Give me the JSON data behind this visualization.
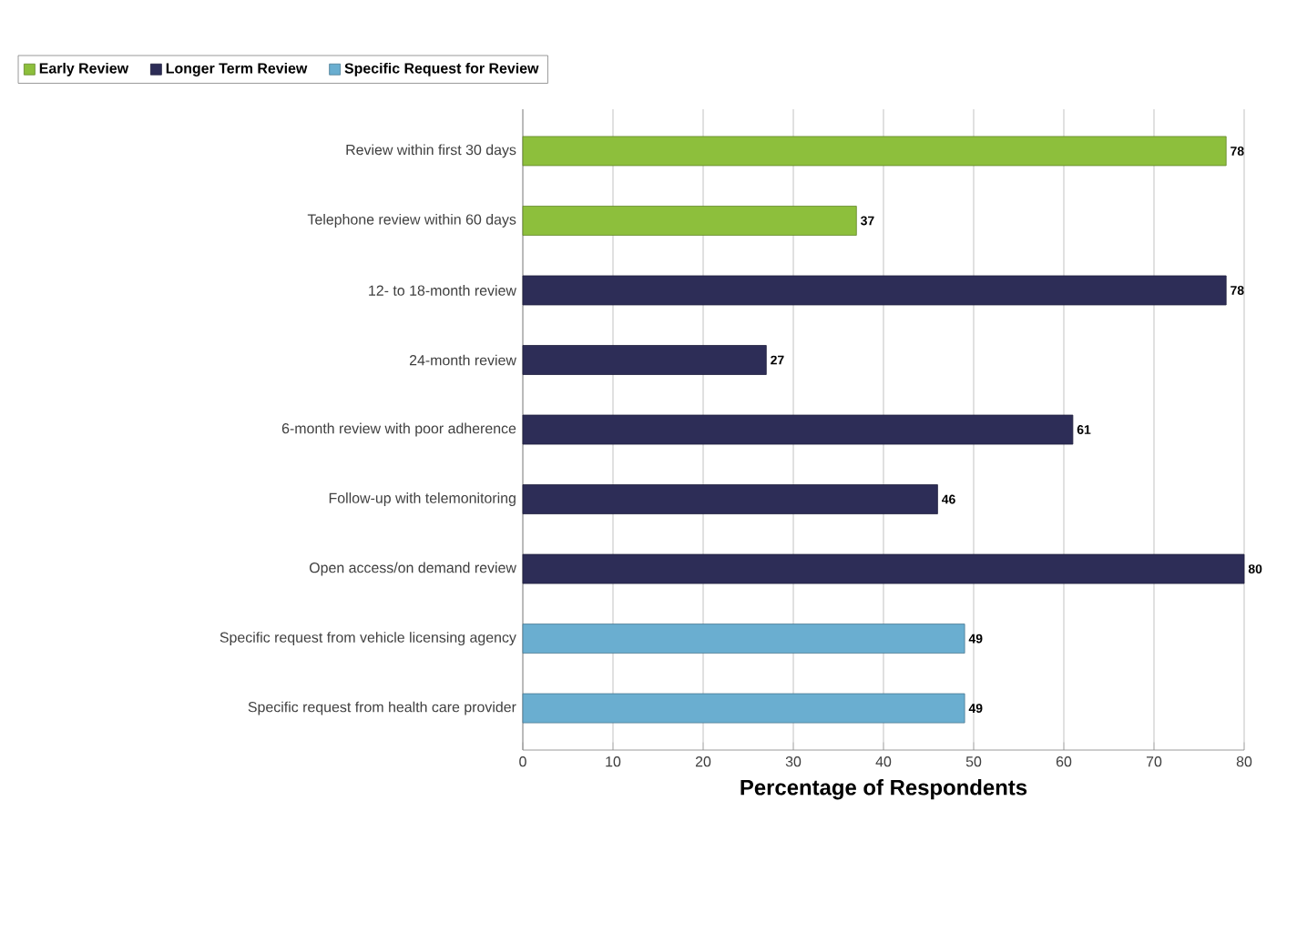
{
  "chart_data": {
    "type": "bar",
    "orientation": "horizontal",
    "xlabel": "Percentage of Respondents",
    "categories": [
      "Review within first 30 days",
      "Telephone review within 60 days",
      "12- to 18-month review",
      "24-month review",
      "6-month review with poor adherence",
      "Follow-up with telemonitoring",
      "Open access/on demand  review",
      "Specific request from vehicle licensing agency",
      "Specific request from health care provider"
    ],
    "series": [
      {
        "name": "Early Review",
        "color": "#8dbf3c",
        "values": [
          78,
          37,
          null,
          null,
          null,
          null,
          null,
          null,
          null
        ]
      },
      {
        "name": "Longer Term Review",
        "color": "#2d2d57",
        "values": [
          null,
          null,
          78,
          27,
          61,
          46,
          80,
          null,
          null
        ]
      },
      {
        "name": "Specific Request for Review",
        "color": "#6aaed0",
        "values": [
          null,
          null,
          null,
          null,
          null,
          null,
          null,
          49,
          49
        ]
      }
    ],
    "xlim": [
      0,
      80
    ],
    "xticks": [
      0,
      10,
      20,
      30,
      40,
      50,
      60,
      70,
      80
    ],
    "grid": "x",
    "legend": "top left",
    "data_labels": true
  }
}
